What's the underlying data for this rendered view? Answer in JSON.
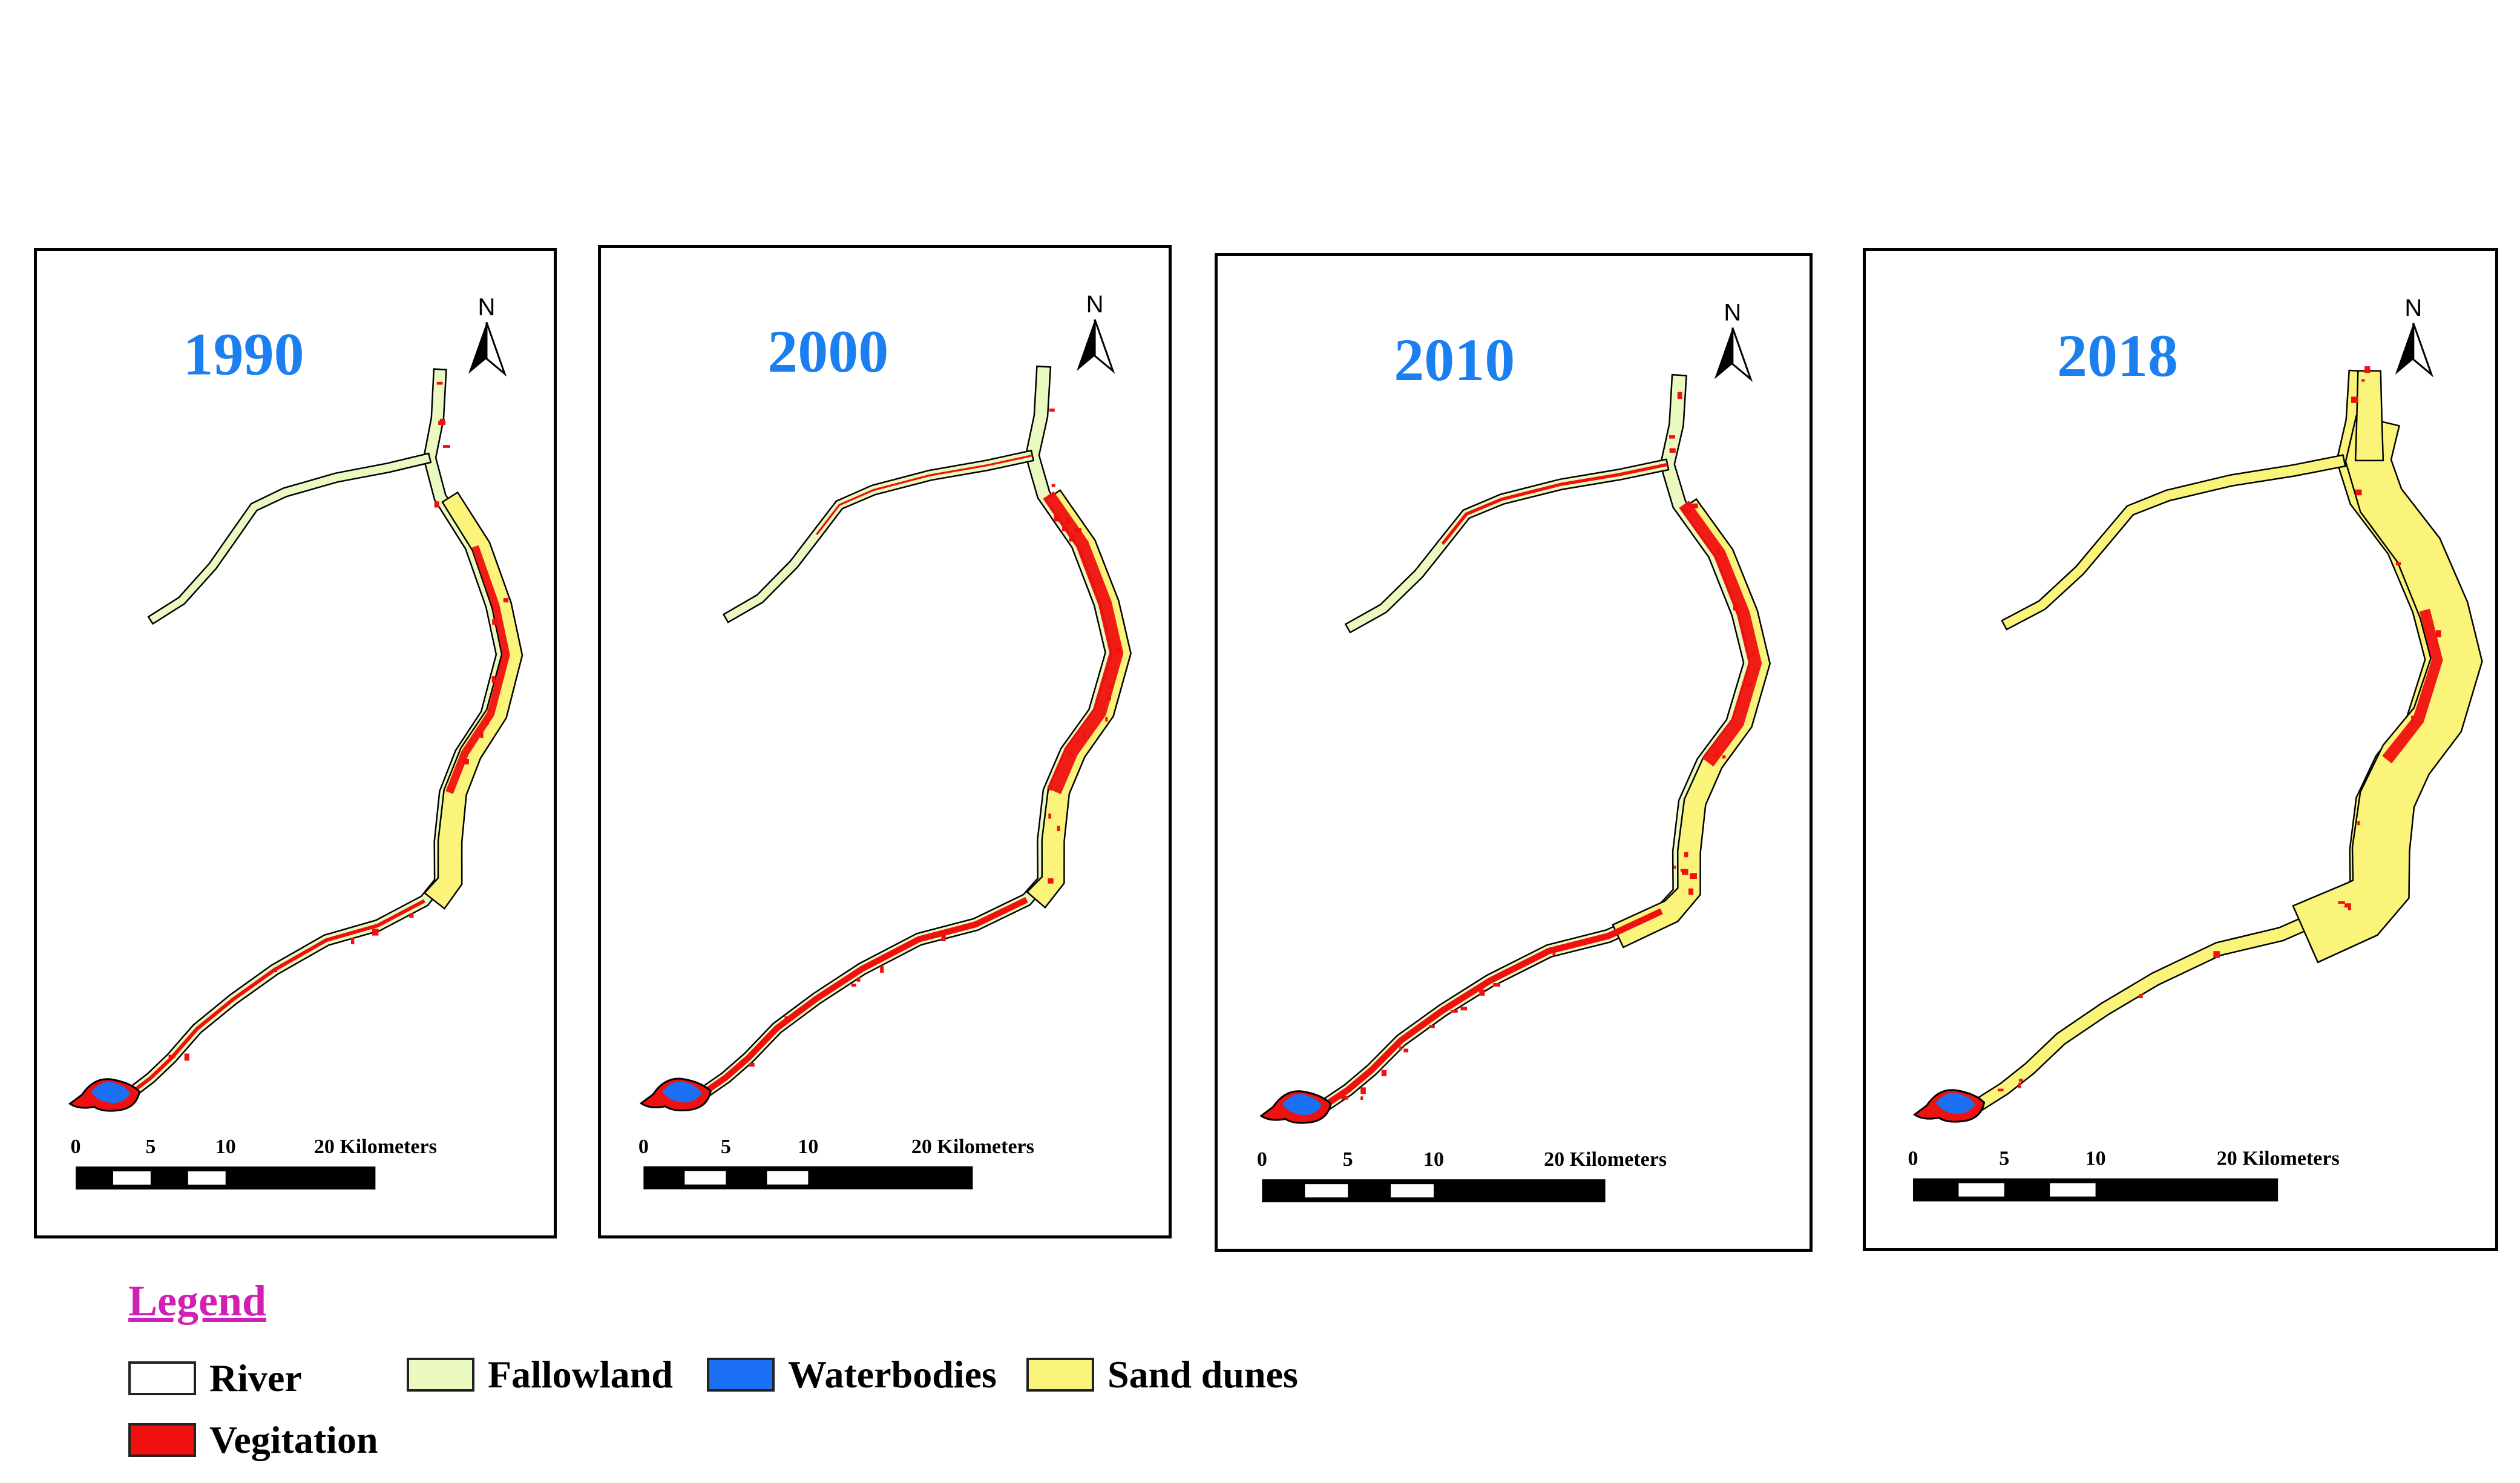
{
  "map": {
    "type": "land-cover time series maps",
    "panels": [
      {
        "year": "1990",
        "north": "N",
        "scale": {
          "ticks": [
            "0",
            "5",
            "10"
          ],
          "end_label": "20 Kilometers"
        }
      },
      {
        "year": "2000",
        "north": "N",
        "scale": {
          "ticks": [
            "0",
            "5",
            "10"
          ],
          "end_label": "20 Kilometers"
        }
      },
      {
        "year": "2010",
        "north": "N",
        "scale": {
          "ticks": [
            "0",
            "5",
            "10"
          ],
          "end_label": "20 Kilometers"
        }
      },
      {
        "year": "2018",
        "north": "N",
        "scale": {
          "ticks": [
            "0",
            "5",
            "10"
          ],
          "end_label": "20 Kilometers"
        }
      }
    ]
  },
  "legend": {
    "title": "Legend",
    "items": [
      {
        "label": "River",
        "color": "#ffffff"
      },
      {
        "label": "Fallowland",
        "color": "#eaf9c0"
      },
      {
        "label": "Waterbodies",
        "color": "#1a6ff2"
      },
      {
        "label": "Sand dunes",
        "color": "#fbf47a"
      },
      {
        "label": "Vegitation",
        "color": "#f01010"
      }
    ]
  },
  "colors": {
    "year_text": "#1b7ff0",
    "legend_title": "#d11fb4",
    "vegetation": "#f01010",
    "sand_dunes": "#fbf47a",
    "fallowland": "#eaf9c0",
    "waterbodies": "#1a6ff2",
    "outline": "#000000"
  }
}
